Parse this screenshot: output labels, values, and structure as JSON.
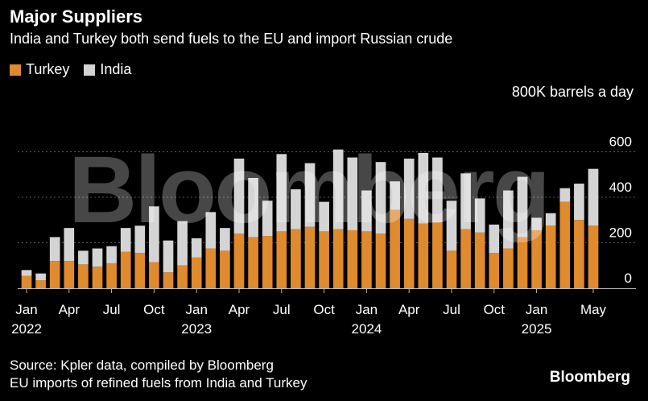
{
  "header": {
    "title": "Major Suppliers",
    "subtitle": "India and Turkey both send fuels to the EU and import Russian crude"
  },
  "legend": {
    "turkey": "Turkey",
    "india": "India"
  },
  "unit_label": "800K barrels a day",
  "footer": {
    "source": "Source: Kpler data, compiled by Bloomberg",
    "note": "EU imports of refined fuels from India and Turkey",
    "brand": "Bloomberg"
  },
  "watermark": "Bloomberg",
  "colors": {
    "turkey": "#e08a2e",
    "india": "#d4d4d4",
    "grid": "#5a5a5a",
    "background": "#000000"
  },
  "chart_data": {
    "type": "bar",
    "stacked": true,
    "title": "Major Suppliers",
    "ylabel": "800K barrels a day",
    "ylim": [
      0,
      680
    ],
    "yticks": [
      0,
      200,
      400,
      600
    ],
    "categories": [
      "2022-01",
      "2022-02",
      "2022-03",
      "2022-04",
      "2022-05",
      "2022-06",
      "2022-07",
      "2022-08",
      "2022-09",
      "2022-10",
      "2022-11",
      "2022-12",
      "2023-01",
      "2023-02",
      "2023-03",
      "2023-04",
      "2023-05",
      "2023-06",
      "2023-07",
      "2023-08",
      "2023-09",
      "2023-10",
      "2023-11",
      "2023-12",
      "2024-01",
      "2024-02",
      "2024-03",
      "2024-04",
      "2024-05",
      "2024-06",
      "2024-07",
      "2024-08",
      "2024-09",
      "2024-10",
      "2024-11",
      "2024-12",
      "2025-01",
      "2025-02",
      "2025-03",
      "2025-04",
      "2025-05"
    ],
    "x_tick_labels": [
      {
        "index": 0,
        "month": "Jan",
        "year": "2022"
      },
      {
        "index": 3,
        "month": "Apr",
        "year": ""
      },
      {
        "index": 6,
        "month": "Jul",
        "year": ""
      },
      {
        "index": 9,
        "month": "Oct",
        "year": ""
      },
      {
        "index": 12,
        "month": "Jan",
        "year": "2023"
      },
      {
        "index": 15,
        "month": "Apr",
        "year": ""
      },
      {
        "index": 18,
        "month": "Jul",
        "year": ""
      },
      {
        "index": 21,
        "month": "Oct",
        "year": ""
      },
      {
        "index": 24,
        "month": "Jan",
        "year": "2024"
      },
      {
        "index": 27,
        "month": "Apr",
        "year": ""
      },
      {
        "index": 30,
        "month": "Jul",
        "year": ""
      },
      {
        "index": 33,
        "month": "Oct",
        "year": ""
      },
      {
        "index": 36,
        "month": "Jan",
        "year": "2025"
      },
      {
        "index": 40,
        "month": "May",
        "year": ""
      }
    ],
    "series": [
      {
        "name": "Turkey",
        "values": [
          55,
          35,
          120,
          120,
          105,
          95,
          110,
          160,
          155,
          115,
          70,
          100,
          135,
          175,
          165,
          240,
          225,
          230,
          250,
          260,
          270,
          250,
          260,
          255,
          250,
          240,
          345,
          305,
          285,
          290,
          165,
          260,
          245,
          155,
          175,
          225,
          255,
          275,
          380,
          300,
          275
        ]
      },
      {
        "name": "India",
        "values": [
          25,
          30,
          105,
          145,
          60,
          80,
          75,
          105,
          120,
          245,
          140,
          195,
          85,
          160,
          100,
          330,
          260,
          155,
          340,
          175,
          280,
          130,
          350,
          320,
          180,
          315,
          125,
          265,
          310,
          285,
          220,
          245,
          150,
          125,
          255,
          265,
          55,
          55,
          60,
          160,
          250
        ]
      }
    ]
  }
}
